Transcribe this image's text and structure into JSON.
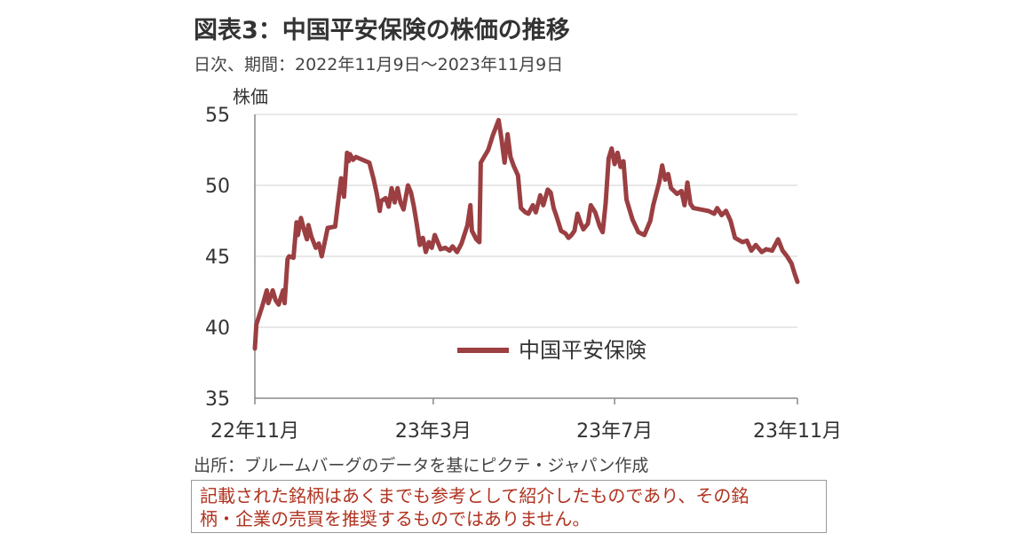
{
  "header": {
    "title": "図表3：中国平安保険の株価の推移",
    "subtitle": "日次、期間：2022年11月9日～2023年11月9日"
  },
  "footer": {
    "source": "出所：ブルームバーグのデータを基にピクテ・ジャパン作成",
    "disclaimer_line1": "記載された銘柄はあくまでも参考として紹介したものであり、その銘",
    "disclaimer_line2": "柄・企業の売買を推奨するものではありません。"
  },
  "colors": {
    "series": "#9b3f42",
    "grid": "#d9d9d9",
    "axis": "#888888"
  },
  "chart_data": {
    "type": "line",
    "ylabel": "株価",
    "ylim": [
      35,
      55
    ],
    "yticks": [
      35,
      40,
      45,
      50,
      55
    ],
    "xlim": [
      "2022-11-09",
      "2023-11-09"
    ],
    "xticks": [
      {
        "date": "2022-11-09",
        "label": "22年11月"
      },
      {
        "date": "2023-03-09",
        "label": "23年3月"
      },
      {
        "date": "2023-07-09",
        "label": "23年7月"
      },
      {
        "date": "2023-11-09",
        "label": "23年11月"
      }
    ],
    "legend_position": "bottom-center",
    "grid": true,
    "series": [
      {
        "name": "中国平安保険",
        "points": [
          [
            "2022-11-09",
            38.5
          ],
          [
            "2022-11-10",
            40.2
          ],
          [
            "2022-11-14",
            41.5
          ],
          [
            "2022-11-17",
            42.6
          ],
          [
            "2022-11-18",
            41.7
          ],
          [
            "2022-11-21",
            42.6
          ],
          [
            "2022-11-23",
            41.9
          ],
          [
            "2022-11-25",
            41.6
          ],
          [
            "2022-11-28",
            42.6
          ],
          [
            "2022-11-29",
            41.7
          ],
          [
            "2022-12-01",
            44.8
          ],
          [
            "2022-12-02",
            45.0
          ],
          [
            "2022-12-05",
            44.9
          ],
          [
            "2022-12-07",
            47.4
          ],
          [
            "2022-12-08",
            46.5
          ],
          [
            "2022-12-10",
            47.7
          ],
          [
            "2022-12-12",
            46.9
          ],
          [
            "2022-12-14",
            46.2
          ],
          [
            "2022-12-15",
            47.2
          ],
          [
            "2022-12-17",
            46.4
          ],
          [
            "2022-12-20",
            45.6
          ],
          [
            "2022-12-22",
            45.9
          ],
          [
            "2022-12-24",
            45.0
          ],
          [
            "2022-12-26",
            46.0
          ],
          [
            "2022-12-28",
            47.0
          ],
          [
            "2023-01-02",
            47.1
          ],
          [
            "2023-01-04",
            48.8
          ],
          [
            "2023-01-06",
            50.5
          ],
          [
            "2023-01-08",
            49.2
          ],
          [
            "2023-01-10",
            52.3
          ],
          [
            "2023-01-11",
            51.7
          ],
          [
            "2023-01-12",
            52.2
          ],
          [
            "2023-01-14",
            51.8
          ],
          [
            "2023-01-16",
            52.0
          ],
          [
            "2023-01-25",
            51.6
          ],
          [
            "2023-01-28",
            50.4
          ],
          [
            "2023-01-30",
            49.4
          ],
          [
            "2023-02-01",
            48.2
          ],
          [
            "2023-02-02",
            48.9
          ],
          [
            "2023-02-05",
            49.1
          ],
          [
            "2023-02-07",
            48.5
          ],
          [
            "2023-02-09",
            49.8
          ],
          [
            "2023-02-11",
            48.8
          ],
          [
            "2023-02-13",
            49.8
          ],
          [
            "2023-02-15",
            48.8
          ],
          [
            "2023-02-17",
            48.3
          ],
          [
            "2023-02-20",
            50.0
          ],
          [
            "2023-02-22",
            49.5
          ],
          [
            "2023-02-24",
            48.5
          ],
          [
            "2023-02-26",
            47.2
          ],
          [
            "2023-02-28",
            45.8
          ],
          [
            "2023-03-02",
            46.3
          ],
          [
            "2023-03-04",
            45.3
          ],
          [
            "2023-03-06",
            46.0
          ],
          [
            "2023-03-08",
            45.6
          ],
          [
            "2023-03-10",
            46.5
          ],
          [
            "2023-03-14",
            45.5
          ],
          [
            "2023-03-17",
            45.6
          ],
          [
            "2023-03-20",
            45.4
          ],
          [
            "2023-03-22",
            45.7
          ],
          [
            "2023-03-25",
            45.3
          ],
          [
            "2023-03-28",
            45.9
          ],
          [
            "2023-04-01",
            47.2
          ],
          [
            "2023-04-03",
            48.6
          ],
          [
            "2023-04-04",
            46.8
          ],
          [
            "2023-04-07",
            46.2
          ],
          [
            "2023-04-09",
            46.0
          ],
          [
            "2023-04-10",
            51.6
          ],
          [
            "2023-04-15",
            52.5
          ],
          [
            "2023-04-18",
            53.5
          ],
          [
            "2023-04-22",
            54.6
          ],
          [
            "2023-04-24",
            53.2
          ],
          [
            "2023-04-26",
            51.6
          ],
          [
            "2023-04-28",
            53.6
          ],
          [
            "2023-04-30",
            52.0
          ],
          [
            "2023-05-02",
            51.4
          ],
          [
            "2023-05-05",
            50.7
          ],
          [
            "2023-05-07",
            48.4
          ],
          [
            "2023-05-10",
            48.1
          ],
          [
            "2023-05-12",
            48.0
          ],
          [
            "2023-05-15",
            48.6
          ],
          [
            "2023-05-17",
            48.1
          ],
          [
            "2023-05-20",
            49.3
          ],
          [
            "2023-05-22",
            48.6
          ],
          [
            "2023-05-25",
            49.7
          ],
          [
            "2023-05-27",
            49.5
          ],
          [
            "2023-05-29",
            48.4
          ],
          [
            "2023-05-31",
            47.8
          ],
          [
            "2023-06-03",
            46.8
          ],
          [
            "2023-06-06",
            46.6
          ],
          [
            "2023-06-08",
            46.3
          ],
          [
            "2023-06-10",
            46.5
          ],
          [
            "2023-06-12",
            46.8
          ],
          [
            "2023-06-14",
            48.0
          ],
          [
            "2023-06-16",
            47.4
          ],
          [
            "2023-06-18",
            46.9
          ],
          [
            "2023-06-21",
            47.3
          ],
          [
            "2023-06-23",
            48.6
          ],
          [
            "2023-06-26",
            48.1
          ],
          [
            "2023-06-29",
            47.1
          ],
          [
            "2023-07-01",
            46.7
          ],
          [
            "2023-07-03",
            48.8
          ],
          [
            "2023-07-05",
            51.9
          ],
          [
            "2023-07-07",
            52.6
          ],
          [
            "2023-07-09",
            51.5
          ],
          [
            "2023-07-11",
            52.3
          ],
          [
            "2023-07-13",
            51.3
          ],
          [
            "2023-07-15",
            51.7
          ],
          [
            "2023-07-17",
            49.0
          ],
          [
            "2023-07-21",
            47.6
          ],
          [
            "2023-07-25",
            46.7
          ],
          [
            "2023-07-29",
            46.5
          ],
          [
            "2023-08-02",
            47.5
          ],
          [
            "2023-08-04",
            48.6
          ],
          [
            "2023-08-08",
            50.2
          ],
          [
            "2023-08-10",
            51.4
          ],
          [
            "2023-08-12",
            50.4
          ],
          [
            "2023-08-14",
            50.8
          ],
          [
            "2023-08-16",
            49.8
          ],
          [
            "2023-08-20",
            49.4
          ],
          [
            "2023-08-23",
            49.6
          ],
          [
            "2023-08-25",
            48.6
          ],
          [
            "2023-08-27",
            50.2
          ],
          [
            "2023-08-29",
            48.7
          ],
          [
            "2023-08-31",
            48.4
          ],
          [
            "2023-09-05",
            48.3
          ],
          [
            "2023-09-10",
            48.2
          ],
          [
            "2023-09-14",
            48.0
          ],
          [
            "2023-09-16",
            48.4
          ],
          [
            "2023-09-19",
            47.9
          ],
          [
            "2023-09-22",
            48.2
          ],
          [
            "2023-09-25",
            47.5
          ],
          [
            "2023-09-28",
            46.3
          ],
          [
            "2023-10-03",
            46.0
          ],
          [
            "2023-10-06",
            46.1
          ],
          [
            "2023-10-09",
            45.4
          ],
          [
            "2023-10-12",
            45.8
          ],
          [
            "2023-10-16",
            45.3
          ],
          [
            "2023-10-19",
            45.5
          ],
          [
            "2023-10-23",
            45.4
          ],
          [
            "2023-10-27",
            46.2
          ],
          [
            "2023-10-30",
            45.4
          ],
          [
            "2023-11-02",
            45.0
          ],
          [
            "2023-11-05",
            44.5
          ],
          [
            "2023-11-07",
            43.8
          ],
          [
            "2023-11-09",
            43.2
          ]
        ]
      }
    ]
  }
}
